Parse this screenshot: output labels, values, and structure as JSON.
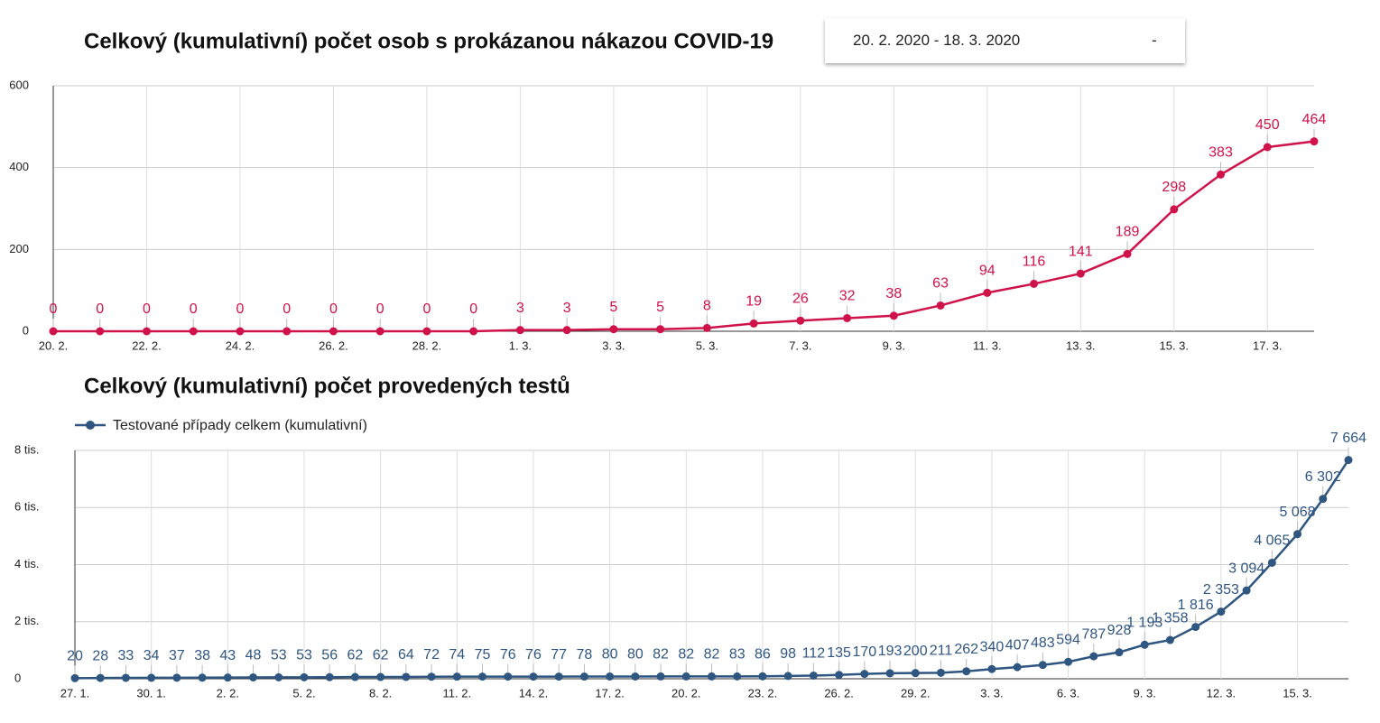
{
  "date_picker": {
    "range": "20. 2. 2020 - 18. 3. 2020",
    "toggle": "-"
  },
  "chart_data": [
    {
      "type": "line",
      "title": "Celkový (kumulativní) počet osob s prokázanou nákazou COVID-19",
      "categories": [
        "20. 2.",
        null,
        "22. 2.",
        null,
        "24. 2.",
        null,
        "26. 2.",
        null,
        "28. 2.",
        null,
        "1. 3.",
        null,
        "3. 3.",
        null,
        "5. 3.",
        null,
        "7. 3.",
        null,
        "9. 3.",
        null,
        "11. 3.",
        null,
        "13. 3.",
        null,
        "15. 3.",
        null,
        "17. 3.",
        null
      ],
      "series": [
        {
          "color": "#d0124a",
          "values": [
            0,
            0,
            0,
            0,
            0,
            0,
            0,
            0,
            0,
            0,
            3,
            3,
            5,
            5,
            8,
            19,
            26,
            32,
            38,
            63,
            94,
            116,
            141,
            189,
            298,
            383,
            450,
            464
          ]
        }
      ],
      "ylim": [
        0,
        600
      ],
      "yticks": [
        0,
        200,
        400,
        600
      ],
      "grid": true
    },
    {
      "type": "line",
      "title": "Celkový (kumulativní) počet provedených testů",
      "categories": [
        "27. 1.",
        null,
        null,
        "30. 1.",
        null,
        null,
        "2. 2.",
        null,
        null,
        "5. 2.",
        null,
        null,
        "8. 2.",
        null,
        null,
        "11. 2.",
        null,
        null,
        "14. 2.",
        null,
        null,
        "17. 2.",
        null,
        null,
        "20. 2.",
        null,
        null,
        "23. 2.",
        null,
        null,
        "26. 2.",
        null,
        null,
        "29. 2.",
        null,
        null,
        "3. 3.",
        null,
        null,
        "6. 3.",
        null,
        null,
        "9. 3.",
        null,
        null,
        "12. 3.",
        null,
        null,
        "15. 3.",
        null,
        null
      ],
      "series": [
        {
          "name": "Testované případy celkem (kumulativní)",
          "color": "#2f5680",
          "values": [
            20,
            28,
            33,
            34,
            37,
            38,
            43,
            48,
            53,
            53,
            56,
            62,
            62,
            64,
            72,
            74,
            75,
            76,
            76,
            77,
            78,
            80,
            80,
            82,
            82,
            82,
            83,
            86,
            98,
            112,
            135,
            170,
            193,
            200,
            211,
            262,
            340,
            407,
            483,
            594,
            787,
            928,
            1193,
            1358,
            1816,
            2353,
            3094,
            4065,
            5068,
            6302,
            7664
          ],
          "value_labels": [
            "20",
            "28",
            "33",
            "34",
            "37",
            "38",
            "43",
            "48",
            "53",
            "53",
            "56",
            "62",
            "62",
            "64",
            "72",
            "74",
            "75",
            "76",
            "76",
            "77",
            "78",
            "80",
            "80",
            "82",
            "82",
            "82",
            "83",
            "86",
            "98",
            "112",
            "135",
            "170",
            "193",
            "200",
            "211",
            "262",
            "340",
            "407",
            "483",
            "594",
            "787",
            "928",
            "1 193",
            "1 358",
            "1 816",
            "2 353",
            "3 094",
            "4 065",
            "5 068",
            "6 302",
            "7 664"
          ]
        }
      ],
      "ylim": [
        0,
        8000
      ],
      "yticks": [
        0,
        {
          "value": 2000,
          "label": "2 tis."
        },
        {
          "value": 4000,
          "label": "4 tis."
        },
        {
          "value": 6000,
          "label": "6 tis."
        },
        {
          "value": 8000,
          "label": "8 tis."
        }
      ],
      "grid": true,
      "legend": "top-left"
    }
  ]
}
